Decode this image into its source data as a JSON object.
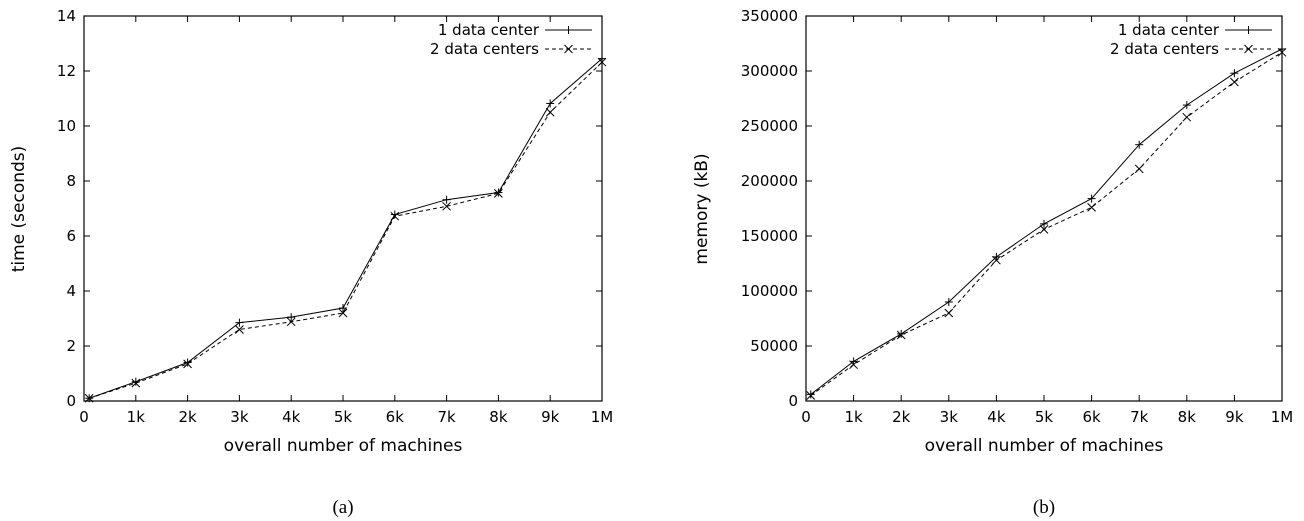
{
  "chart_data": [
    {
      "panel": "(a)",
      "type": "line",
      "xlabel": "overall number of machines",
      "ylabel": "time (seconds)",
      "x_ticks": [
        "0",
        "1k",
        "2k",
        "3k",
        "4k",
        "5k",
        "6k",
        "7k",
        "8k",
        "9k",
        "1M"
      ],
      "xlim": [
        0,
        10
      ],
      "ylim": [
        0,
        14
      ],
      "y_ticks": [
        "0",
        "2",
        "4",
        "6",
        "8",
        "10",
        "12",
        "14"
      ],
      "legend_position": "top-right",
      "grid": false,
      "x": [
        0.1,
        1,
        2,
        3,
        4,
        5,
        6,
        7,
        8,
        9,
        10
      ],
      "series": [
        {
          "name": "1 data center",
          "values": [
            0.1,
            0.7,
            1.4,
            2.85,
            3.05,
            3.38,
            6.78,
            7.32,
            7.58,
            10.82,
            12.45
          ],
          "marker": "plus",
          "dash": "solid"
        },
        {
          "name": "2 data centers",
          "values": [
            0.1,
            0.65,
            1.35,
            2.6,
            2.88,
            3.2,
            6.72,
            7.08,
            7.55,
            10.5,
            12.32
          ],
          "marker": "x",
          "dash": "dashed"
        }
      ]
    },
    {
      "panel": "(b)",
      "type": "line",
      "xlabel": "overall number of machines",
      "ylabel": "memory (kB)",
      "x_ticks": [
        "0",
        "1k",
        "2k",
        "3k",
        "4k",
        "5k",
        "6k",
        "7k",
        "8k",
        "9k",
        "1M"
      ],
      "xlim": [
        0,
        10
      ],
      "ylim": [
        0,
        350000
      ],
      "y_ticks": [
        "0",
        "50000",
        "100000",
        "150000",
        "200000",
        "250000",
        "300000",
        "350000"
      ],
      "legend_position": "top-right",
      "grid": false,
      "x": [
        0.1,
        1,
        2,
        3,
        4,
        5,
        6,
        7,
        8,
        9,
        10
      ],
      "series": [
        {
          "name": "1 data center",
          "values": [
            6000,
            36000,
            61000,
            90000,
            131000,
            161000,
            184000,
            233000,
            269000,
            298000,
            320000
          ],
          "marker": "plus",
          "dash": "solid"
        },
        {
          "name": "2 data centers",
          "values": [
            5000,
            33000,
            60000,
            80000,
            128000,
            156000,
            176000,
            211000,
            258000,
            290000,
            317000
          ],
          "marker": "x",
          "dash": "dashed"
        }
      ]
    }
  ]
}
